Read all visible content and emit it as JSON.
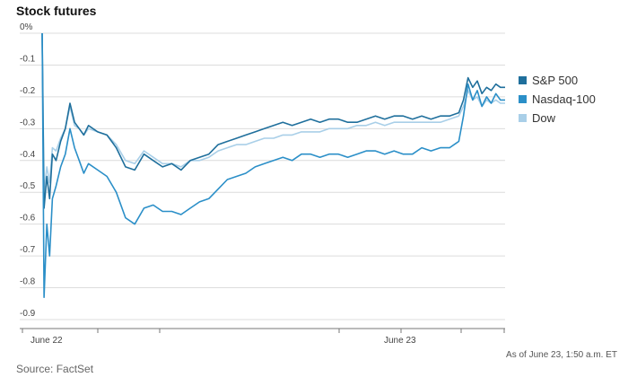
{
  "colors": {
    "sp500": "#1f6f9c",
    "nasdaq": "#2b8fc8",
    "dow": "#a9cfe8",
    "grid": "#dcdcdc",
    "axis": "#777777"
  },
  "chart_data": {
    "type": "line",
    "title": "Stock futures",
    "x_ticks": [
      "June 22",
      "June 23"
    ],
    "y_ticks": [
      "0%",
      "-0.1",
      "-0.2",
      "-0.3",
      "-0.4",
      "-0.5",
      "-0.6",
      "-0.7",
      "-0.8",
      "-0.9"
    ],
    "ylim": [
      -0.9,
      0
    ],
    "grid": true,
    "legend_position": "right",
    "note": "As of June 23, 1:50 a.m. ET",
    "source": "Source: FactSet",
    "series": [
      {
        "name": "S&P 500",
        "x": [
          0,
          0.4,
          1,
          1.6,
          2.2,
          3,
          4,
          5,
          6,
          7,
          8,
          9,
          10,
          12,
          14,
          16,
          18,
          20,
          22,
          24,
          26,
          28,
          30,
          32,
          34,
          36,
          38,
          40,
          42,
          44,
          46,
          48,
          50,
          52,
          54,
          56,
          58,
          60,
          62,
          64,
          66,
          68,
          70,
          72,
          74,
          76,
          78,
          80,
          82,
          84,
          86,
          88,
          90,
          91,
          92,
          93,
          94,
          95,
          96,
          97,
          98,
          99,
          100
        ],
        "values": [
          0,
          -0.55,
          -0.45,
          -0.52,
          -0.38,
          -0.4,
          -0.34,
          -0.3,
          -0.22,
          -0.28,
          -0.3,
          -0.32,
          -0.29,
          -0.31,
          -0.32,
          -0.36,
          -0.42,
          -0.43,
          -0.38,
          -0.4,
          -0.42,
          -0.41,
          -0.43,
          -0.4,
          -0.39,
          -0.38,
          -0.35,
          -0.34,
          -0.33,
          -0.32,
          -0.31,
          -0.3,
          -0.29,
          -0.28,
          -0.29,
          -0.28,
          -0.27,
          -0.28,
          -0.27,
          -0.27,
          -0.28,
          -0.28,
          -0.27,
          -0.26,
          -0.27,
          -0.26,
          -0.26,
          -0.27,
          -0.26,
          -0.27,
          -0.26,
          -0.26,
          -0.25,
          -0.21,
          -0.14,
          -0.17,
          -0.15,
          -0.19,
          -0.17,
          -0.18,
          -0.16,
          -0.17,
          -0.17
        ]
      },
      {
        "name": "Nasdaq-100",
        "x": [
          0,
          0.4,
          1,
          1.6,
          2.2,
          3,
          4,
          5,
          6,
          7,
          8,
          9,
          10,
          12,
          14,
          16,
          18,
          20,
          22,
          24,
          26,
          28,
          30,
          32,
          34,
          36,
          38,
          40,
          42,
          44,
          46,
          48,
          50,
          52,
          54,
          56,
          58,
          60,
          62,
          64,
          66,
          68,
          70,
          72,
          74,
          76,
          78,
          80,
          82,
          84,
          86,
          88,
          90,
          91,
          92,
          93,
          94,
          95,
          96,
          97,
          98,
          99,
          100
        ],
        "values": [
          0,
          -0.83,
          -0.6,
          -0.7,
          -0.52,
          -0.48,
          -0.42,
          -0.38,
          -0.3,
          -0.36,
          -0.4,
          -0.44,
          -0.41,
          -0.43,
          -0.45,
          -0.5,
          -0.58,
          -0.6,
          -0.55,
          -0.54,
          -0.56,
          -0.56,
          -0.57,
          -0.55,
          -0.53,
          -0.52,
          -0.49,
          -0.46,
          -0.45,
          -0.44,
          -0.42,
          -0.41,
          -0.4,
          -0.39,
          -0.4,
          -0.38,
          -0.38,
          -0.39,
          -0.38,
          -0.38,
          -0.39,
          -0.38,
          -0.37,
          -0.37,
          -0.38,
          -0.37,
          -0.38,
          -0.38,
          -0.36,
          -0.37,
          -0.36,
          -0.36,
          -0.34,
          -0.26,
          -0.16,
          -0.21,
          -0.18,
          -0.23,
          -0.2,
          -0.22,
          -0.19,
          -0.21,
          -0.21
        ]
      },
      {
        "name": "Dow",
        "x": [
          0,
          0.4,
          1,
          1.6,
          2.2,
          3,
          4,
          5,
          6,
          7,
          8,
          9,
          10,
          12,
          14,
          16,
          18,
          20,
          22,
          24,
          26,
          28,
          30,
          32,
          34,
          36,
          38,
          40,
          42,
          44,
          46,
          48,
          50,
          52,
          54,
          56,
          58,
          60,
          62,
          64,
          66,
          68,
          70,
          72,
          74,
          76,
          78,
          80,
          82,
          84,
          86,
          88,
          90,
          91,
          92,
          93,
          94,
          95,
          96,
          97,
          98,
          99,
          100
        ],
        "values": [
          0,
          -0.5,
          -0.42,
          -0.47,
          -0.36,
          -0.37,
          -0.33,
          -0.3,
          -0.23,
          -0.29,
          -0.3,
          -0.32,
          -0.3,
          -0.31,
          -0.32,
          -0.35,
          -0.4,
          -0.41,
          -0.37,
          -0.39,
          -0.41,
          -0.41,
          -0.42,
          -0.4,
          -0.4,
          -0.39,
          -0.37,
          -0.36,
          -0.35,
          -0.35,
          -0.34,
          -0.33,
          -0.33,
          -0.32,
          -0.32,
          -0.31,
          -0.31,
          -0.31,
          -0.3,
          -0.3,
          -0.3,
          -0.29,
          -0.29,
          -0.28,
          -0.29,
          -0.28,
          -0.28,
          -0.28,
          -0.28,
          -0.28,
          -0.28,
          -0.27,
          -0.26,
          -0.23,
          -0.18,
          -0.21,
          -0.2,
          -0.23,
          -0.21,
          -0.22,
          -0.21,
          -0.22,
          -0.22
        ]
      }
    ]
  }
}
